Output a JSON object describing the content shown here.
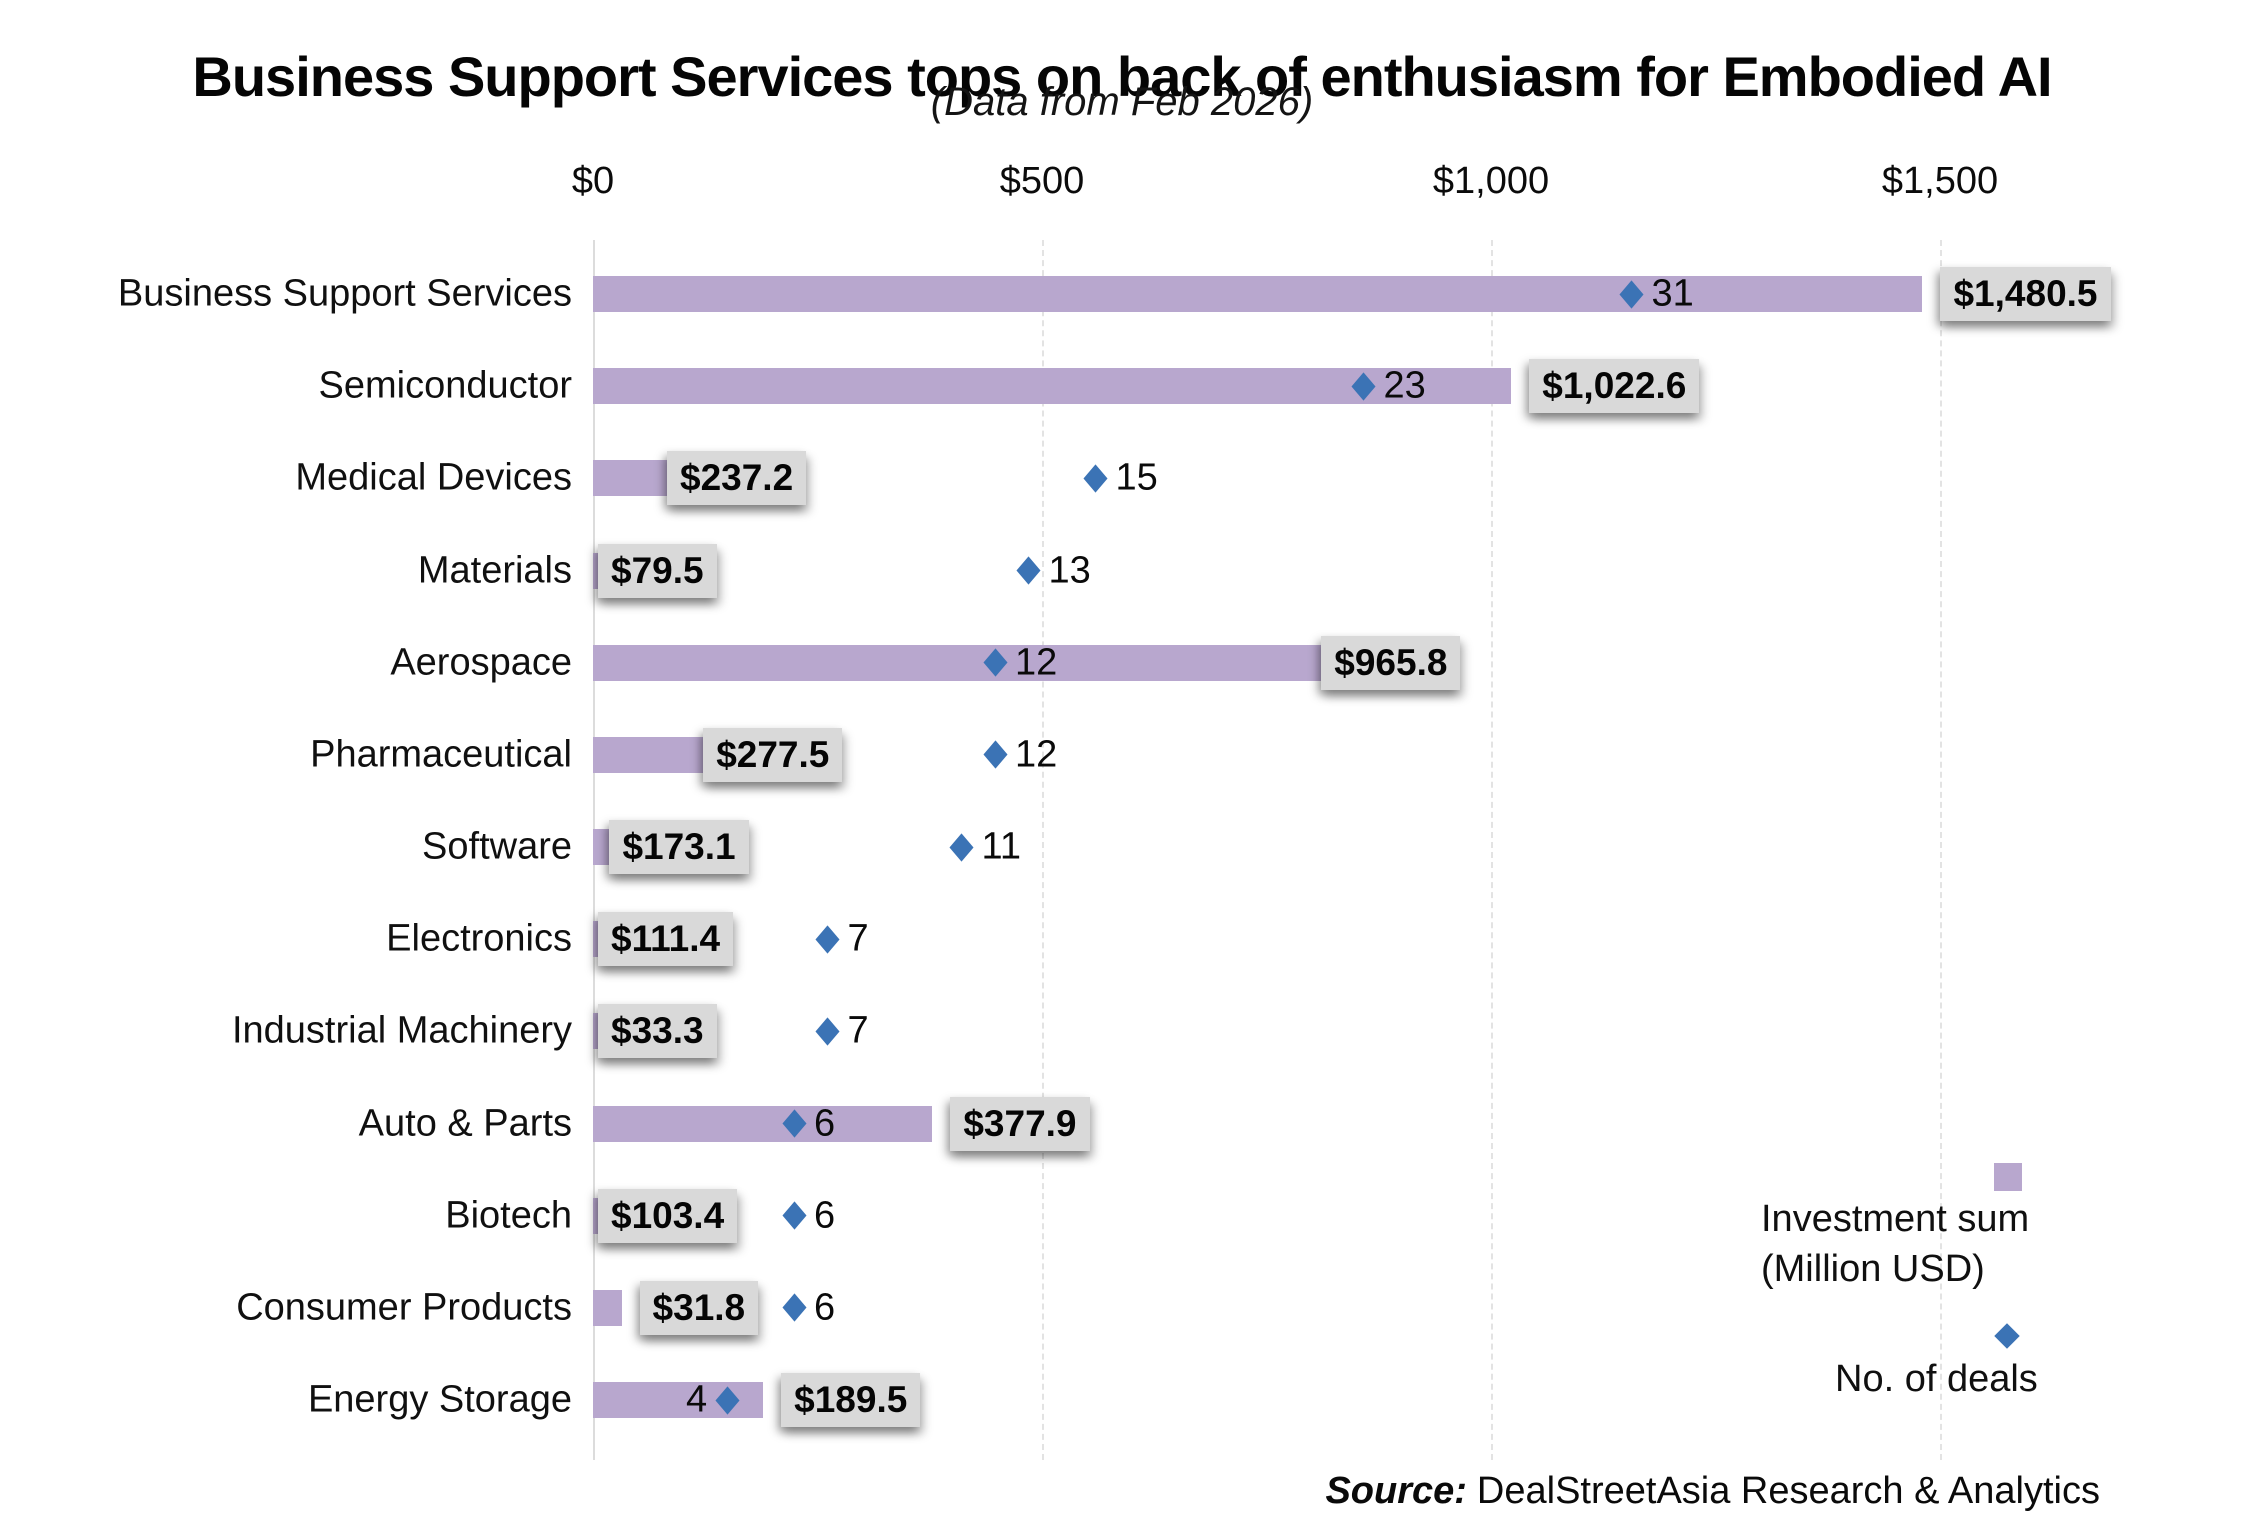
{
  "title": "Business Support Services tops on back of enthusiasm for Embodied AI",
  "subtitle": "(Data from Feb 2026)",
  "source": {
    "label": "Source:",
    "text": "DealStreetAsia Research & Analytics"
  },
  "legend": {
    "investment_line1": "Investment sum",
    "investment_line2": "(Million USD)",
    "deals_label": "No. of deals",
    "position": "bottom-right"
  },
  "colors": {
    "bar_purple": "#b8a7ce",
    "diamond_blue": "#3b73b5",
    "value_box_bg": "#d9d9d9",
    "grid_gray": "#dcdcdc",
    "text_black": "#0b0b0b"
  },
  "chart_data": {
    "type": "bar",
    "orientation": "horizontal",
    "title": "Business Support Services tops on back of enthusiasm for Embodied AI",
    "subtitle": "(Data from Feb 2026)",
    "x_axis": {
      "tick_labels": [
        "$0",
        "$500",
        "$1,000",
        "$1,500"
      ],
      "tick_values": [
        0,
        500,
        1000,
        1500
      ],
      "range": [
        0,
        1580
      ],
      "grid": true,
      "grid_style": "dashed"
    },
    "categories": [
      "Business Support Services",
      "Semiconductor",
      "Medical Devices",
      "Materials",
      "Aerospace",
      "Pharmaceutical",
      "Software",
      "Electronics",
      "Industrial Machinery",
      "Auto & Parts",
      "Biotech",
      "Consumer Products",
      "Energy Storage"
    ],
    "series": [
      {
        "name": "Investment sum (Million USD)",
        "marker": "bar",
        "values": [
          1480.5,
          1022.6,
          237.2,
          79.5,
          965.8,
          277.5,
          173.1,
          111.4,
          33.3,
          377.9,
          103.4,
          31.8,
          189.5
        ],
        "value_labels": [
          "$1,480.5",
          "$1,022.6",
          "$237.2",
          "$79.5",
          "$965.8",
          "$277.5",
          "$173.1",
          "$111.4",
          "$33.3",
          "$377.9",
          "$103.4",
          "$31.8",
          "$189.5"
        ]
      },
      {
        "name": "No. of deals",
        "marker": "diamond",
        "values": [
          31,
          23,
          15,
          13,
          12,
          12,
          11,
          7,
          7,
          6,
          6,
          6,
          4
        ]
      }
    ],
    "layout_hints": {
      "value_label_placement": [
        "outside",
        "outside",
        "inside",
        "inside",
        "inside",
        "inside",
        "inside",
        "inside",
        "inside",
        "outside",
        "inside",
        "outside",
        "outside"
      ],
      "deal_label_side": [
        "right",
        "right",
        "right",
        "right",
        "right",
        "right",
        "right",
        "right",
        "right",
        "right",
        "right",
        "right",
        "left"
      ],
      "legend_position": "bottom-right",
      "source_position": "bottom-right"
    }
  }
}
